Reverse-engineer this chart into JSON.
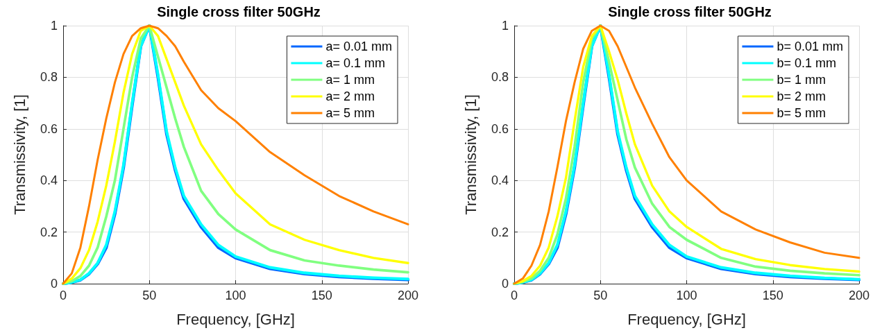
{
  "chart_data": [
    {
      "type": "line",
      "title": "Single cross filter 50GHz",
      "xlabel": "Frequency, [GHz]",
      "ylabel": "Transmissivity, [1]",
      "x": [
        0,
        5,
        10,
        15,
        20,
        25,
        30,
        35,
        40,
        45,
        50,
        55,
        60,
        65,
        70,
        80,
        90,
        100,
        120,
        140,
        160,
        180,
        200
      ],
      "series": [
        {
          "name": "a= 0.01 mm",
          "color": "#0066ff",
          "values": [
            0,
            0.005,
            0.014,
            0.038,
            0.077,
            0.14,
            0.27,
            0.45,
            0.69,
            0.92,
            1,
            0.8,
            0.58,
            0.44,
            0.33,
            0.22,
            0.14,
            0.1,
            0.058,
            0.038,
            0.027,
            0.02,
            0.015
          ]
        },
        {
          "name": "a= 0.1 mm",
          "color": "#00ffff",
          "values": [
            0,
            0.005,
            0.015,
            0.04,
            0.08,
            0.15,
            0.28,
            0.46,
            0.7,
            0.92,
            1,
            0.81,
            0.59,
            0.45,
            0.34,
            0.23,
            0.15,
            0.105,
            0.063,
            0.042,
            0.03,
            0.023,
            0.018
          ]
        },
        {
          "name": "a= 1 mm",
          "color": "#80ff80",
          "values": [
            0,
            0.01,
            0.03,
            0.07,
            0.14,
            0.26,
            0.4,
            0.6,
            0.8,
            0.95,
            1,
            0.88,
            0.76,
            0.64,
            0.53,
            0.36,
            0.27,
            0.21,
            0.13,
            0.09,
            0.07,
            0.055,
            0.044
          ]
        },
        {
          "name": "a= 2 mm",
          "color": "#ffff00",
          "values": [
            0,
            0.02,
            0.06,
            0.13,
            0.24,
            0.38,
            0.55,
            0.74,
            0.89,
            0.98,
            1,
            0.96,
            0.87,
            0.78,
            0.69,
            0.54,
            0.44,
            0.35,
            0.23,
            0.17,
            0.13,
            0.1,
            0.08
          ]
        },
        {
          "name": "a= 5 mm",
          "color": "#ff8000",
          "values": [
            0,
            0.04,
            0.14,
            0.3,
            0.48,
            0.64,
            0.78,
            0.89,
            0.96,
            0.99,
            1,
            0.99,
            0.96,
            0.92,
            0.86,
            0.75,
            0.68,
            0.63,
            0.51,
            0.42,
            0.34,
            0.28,
            0.23
          ]
        }
      ],
      "xlim": [
        0,
        200
      ],
      "xticks": [
        0,
        50,
        100,
        150,
        200
      ],
      "ylim": [
        0,
        1
      ],
      "yticks": [
        0,
        0.2,
        0.4,
        0.6,
        0.8,
        1
      ],
      "grid": true,
      "legend": "top right",
      "line_style": "solid"
    },
    {
      "type": "line",
      "title": "Single cross filter 50GHz",
      "xlabel": "Frequency, [GHz]",
      "ylabel": "Transmissivity, [1]",
      "x": [
        0,
        5,
        10,
        15,
        20,
        25,
        30,
        35,
        40,
        45,
        50,
        55,
        60,
        65,
        70,
        80,
        90,
        100,
        120,
        140,
        160,
        180,
        200
      ],
      "series": [
        {
          "name": "b= 0.01 mm",
          "color": "#0066ff",
          "values": [
            0,
            0.005,
            0.014,
            0.038,
            0.077,
            0.14,
            0.27,
            0.45,
            0.69,
            0.92,
            1,
            0.8,
            0.58,
            0.44,
            0.33,
            0.22,
            0.14,
            0.1,
            0.058,
            0.038,
            0.027,
            0.02,
            0.015
          ]
        },
        {
          "name": "b= 0.1 mm",
          "color": "#00ffff",
          "values": [
            0,
            0.005,
            0.015,
            0.04,
            0.08,
            0.15,
            0.28,
            0.46,
            0.7,
            0.92,
            1,
            0.81,
            0.59,
            0.45,
            0.34,
            0.23,
            0.15,
            0.105,
            0.063,
            0.042,
            0.03,
            0.022,
            0.017
          ]
        },
        {
          "name": "b= 1 mm",
          "color": "#80ff80",
          "values": [
            0,
            0.007,
            0.02,
            0.05,
            0.1,
            0.19,
            0.33,
            0.53,
            0.78,
            0.95,
            1,
            0.86,
            0.71,
            0.56,
            0.45,
            0.31,
            0.22,
            0.17,
            0.1,
            0.066,
            0.05,
            0.04,
            0.033
          ]
        },
        {
          "name": "b= 2 mm",
          "color": "#ffff00",
          "values": [
            0,
            0.01,
            0.03,
            0.07,
            0.14,
            0.26,
            0.41,
            0.63,
            0.84,
            0.96,
            1,
            0.9,
            0.79,
            0.66,
            0.54,
            0.38,
            0.28,
            0.22,
            0.135,
            0.095,
            0.072,
            0.057,
            0.047
          ]
        },
        {
          "name": "b= 5 mm",
          "color": "#ff8000",
          "values": [
            0,
            0.02,
            0.07,
            0.15,
            0.28,
            0.45,
            0.63,
            0.78,
            0.91,
            0.98,
            1,
            0.98,
            0.92,
            0.84,
            0.76,
            0.62,
            0.49,
            0.4,
            0.28,
            0.21,
            0.16,
            0.12,
            0.1
          ]
        }
      ],
      "xlim": [
        0,
        200
      ],
      "xticks": [
        0,
        50,
        100,
        150,
        200
      ],
      "ylim": [
        0,
        1
      ],
      "yticks": [
        0,
        0.2,
        0.4,
        0.6,
        0.8,
        1
      ],
      "grid": true,
      "legend": "top right",
      "line_style": "solid"
    }
  ]
}
